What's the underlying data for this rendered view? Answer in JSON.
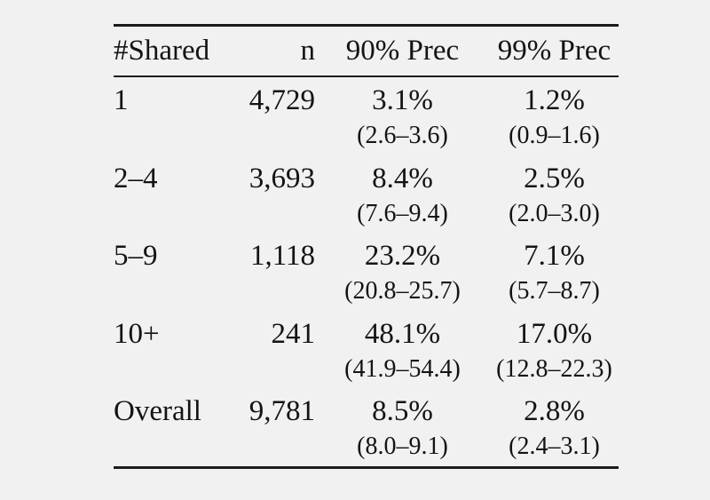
{
  "figure": {
    "background_color": "#f1f1f1",
    "text_color": "#141414",
    "rule_color": "#1c1c1c"
  },
  "table": {
    "columns": [
      "#Shared",
      "n",
      "90% Prec",
      "99% Prec"
    ],
    "rows": [
      {
        "shared": "1",
        "n": "4,729",
        "prec90": "3.1%",
        "prec90_ci": "(2.6–3.6)",
        "prec99": "1.2%",
        "prec99_ci": "(0.9–1.6)"
      },
      {
        "shared": "2–4",
        "n": "3,693",
        "prec90": "8.4%",
        "prec90_ci": "(7.6–9.4)",
        "prec99": "2.5%",
        "prec99_ci": "(2.0–3.0)"
      },
      {
        "shared": "5–9",
        "n": "1,118",
        "prec90": "23.2%",
        "prec90_ci": "(20.8–25.7)",
        "prec99": "7.1%",
        "prec99_ci": "(5.7–8.7)"
      },
      {
        "shared": "10+",
        "n": "241",
        "prec90": "48.1%",
        "prec90_ci": "(41.9–54.4)",
        "prec99": "17.0%",
        "prec99_ci": "(12.8–22.3)"
      },
      {
        "shared": "Overall",
        "n": "9,781",
        "prec90": "8.5%",
        "prec90_ci": "(8.0–9.1)",
        "prec99": "2.8%",
        "prec99_ci": "(2.4–3.1)"
      }
    ]
  }
}
